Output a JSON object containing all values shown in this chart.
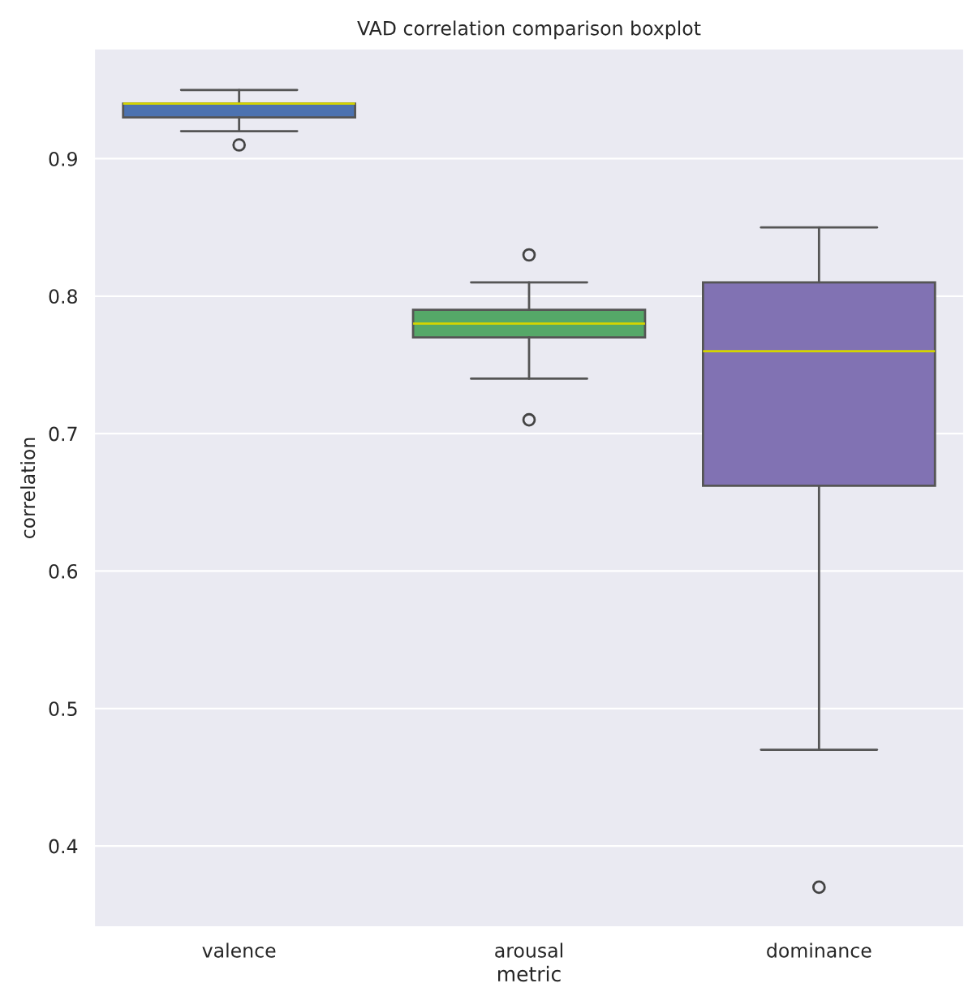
{
  "chart_data": {
    "type": "box",
    "title": "VAD correlation comparison boxplot",
    "xlabel": "metric",
    "ylabel": "correlation",
    "categories": [
      "valence",
      "arousal",
      "dominance"
    ],
    "boxes": [
      {
        "low": 0.92,
        "q1": 0.93,
        "median": 0.94,
        "q3": 0.94,
        "high": 0.95,
        "outliers": [
          0.91
        ]
      },
      {
        "low": 0.74,
        "q1": 0.77,
        "median": 0.78,
        "q3": 0.79,
        "high": 0.81,
        "outliers": [
          0.83,
          0.71
        ]
      },
      {
        "low": 0.47,
        "q1": 0.662,
        "median": 0.76,
        "q3": 0.81,
        "high": 0.85,
        "outliers": [
          0.37
        ]
      }
    ],
    "colors": [
      "#4c72b0",
      "#55a868",
      "#8172b3"
    ],
    "ylim": [
      0.341,
      0.98
    ],
    "yticks": [
      0.4,
      0.5,
      0.6,
      0.7,
      0.8,
      0.9
    ],
    "grid": "y"
  }
}
